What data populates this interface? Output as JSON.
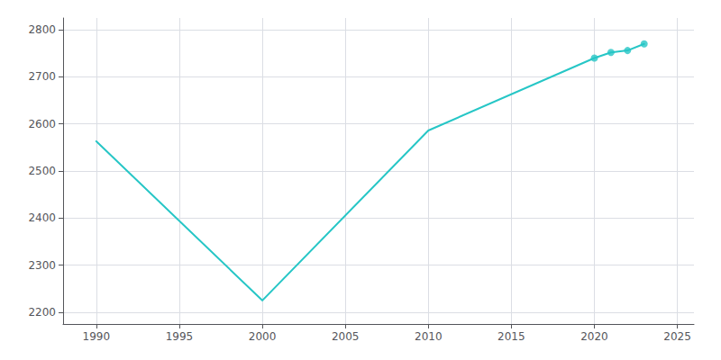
{
  "chart_data": {
    "type": "line",
    "x": [
      1990,
      2000,
      2010,
      2020,
      2021,
      2022,
      2023
    ],
    "series": [
      {
        "type": "line",
        "color": "#26C6C6",
        "values": [
          2563,
          2225,
          2586,
          2740,
          2752,
          2756,
          2770
        ]
      },
      {
        "type": "scatter",
        "color": "#26C6C6",
        "marker": "circle",
        "values": [
          null,
          null,
          null,
          2740,
          2752,
          2756,
          2770
        ]
      }
    ],
    "xlim": [
      1988,
      2026
    ],
    "ylim": [
      2175,
      2825
    ],
    "xticks": [
      1990,
      1995,
      2000,
      2005,
      2010,
      2015,
      2020,
      2025
    ],
    "yticks": [
      2200,
      2300,
      2400,
      2500,
      2600,
      2700,
      2800
    ],
    "grid": true
  }
}
